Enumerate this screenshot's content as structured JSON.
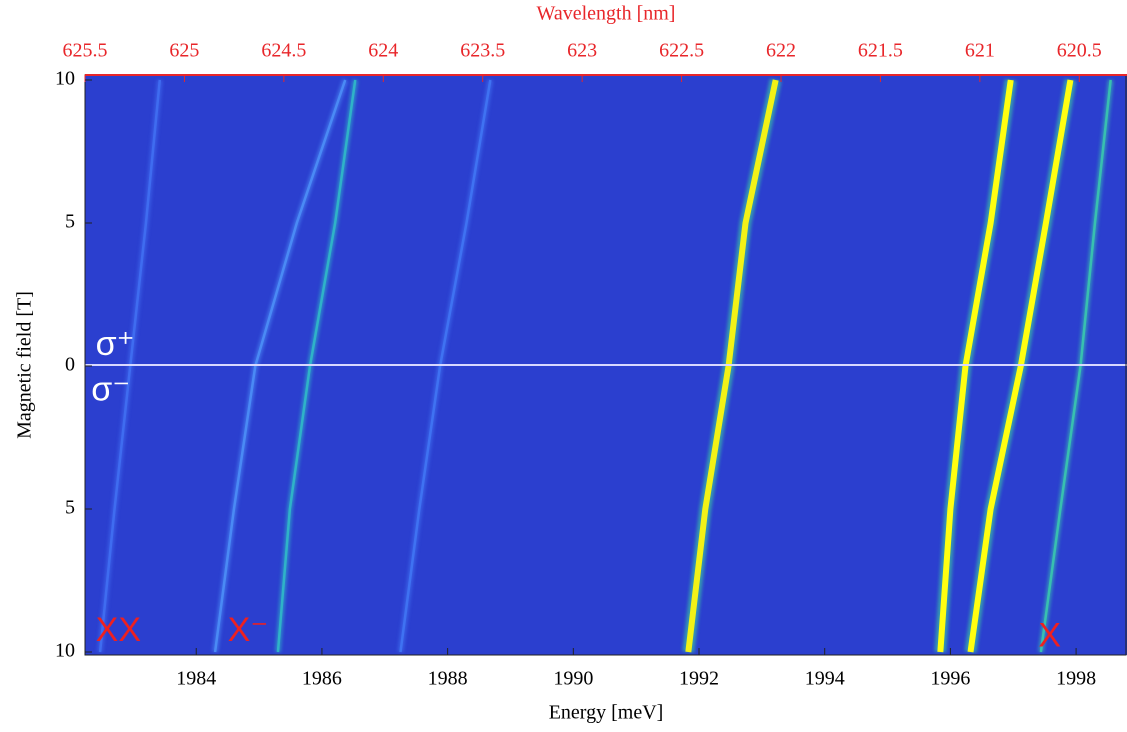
{
  "chart_data": {
    "type": "heatmap",
    "xlabel": "Energy [meV]",
    "ylabel": "Magnetic field [T]",
    "x2label": "Wavelength [nm]",
    "xlim": [
      1982.23,
      1998.81
    ],
    "xticks": [
      1984,
      1986,
      1988,
      1990,
      1992,
      1994,
      1996,
      1998
    ],
    "x2lim": [
      625.5,
      620.26
    ],
    "x2ticks": [
      625.5,
      625,
      624.5,
      624,
      623.5,
      623,
      622.5,
      622,
      621.5,
      621,
      620.5
    ],
    "ylim": [
      -10,
      10
    ],
    "yticks": [
      {
        "value": -10,
        "label": "10"
      },
      {
        "value": -5,
        "label": "5"
      },
      0,
      5,
      10
    ],
    "background": "#2b3fcf",
    "field": [
      -10,
      -5,
      0,
      5,
      10
    ],
    "traces": [
      {
        "energy": [
          1982.47,
          1982.7,
          1982.95,
          1983.2,
          1983.42
        ],
        "color": "#3f6cf0"
      },
      {
        "energy": [
          1984.3,
          1984.6,
          1984.94,
          1985.6,
          1986.37
        ],
        "color": "#4a8af5"
      },
      {
        "energy": [
          1985.3,
          1985.49,
          1985.81,
          1986.21,
          1986.53
        ],
        "color": "#2fb3c8"
      },
      {
        "energy": [
          1987.25,
          1987.55,
          1987.88,
          1988.3,
          1988.68
        ],
        "color": "#3f72f2"
      },
      {
        "energy": [
          1991.83,
          1992.1,
          1992.47,
          1992.74,
          1993.22
        ],
        "color": "#f2f216"
      },
      {
        "energy": [
          1995.84,
          1996.0,
          1996.24,
          1996.64,
          1996.96
        ],
        "color": "#ffff10"
      },
      {
        "energy": [
          1996.32,
          1996.64,
          1997.12,
          1997.52,
          1997.91
        ],
        "color": "#ffff10"
      },
      {
        "energy": [
          1997.44,
          1997.75,
          1998.07,
          1998.3,
          1998.55
        ],
        "color": "#38c0b0"
      }
    ],
    "annotations": [
      {
        "text": "σ⁺",
        "color": "#ffffff",
        "energy": 1982.4,
        "field": 0.7
      },
      {
        "text": "σ⁻",
        "color": "#ffffff",
        "energy": 1982.33,
        "field": -0.9
      },
      {
        "text": "XX",
        "color": "#ee2020",
        "energy": 1982.4,
        "field": -9.3
      },
      {
        "text": "X⁻",
        "color": "#ee2020",
        "energy": 1984.5,
        "field": -9.3
      },
      {
        "text": "X",
        "color": "#ee2020",
        "energy": 1997.4,
        "field": -9.5
      }
    ]
  }
}
